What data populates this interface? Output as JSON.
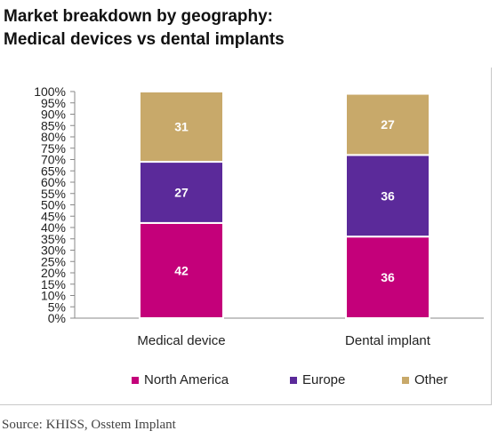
{
  "title_line1": "Market breakdown by geography:",
  "title_line2": "Medical devices vs dental implants",
  "source": "Source: KHISS, Osstem Implant",
  "chart_data": {
    "type": "bar",
    "stacked": true,
    "title": "Market breakdown by geography: Medical devices vs dental implants",
    "categories": [
      "Medical device",
      "Dental implant"
    ],
    "series": [
      {
        "name": "North America",
        "values": [
          42,
          36
        ],
        "color": "#c4007a"
      },
      {
        "name": "Europe",
        "values": [
          27,
          36
        ],
        "color": "#5b2a9a"
      },
      {
        "name": "Other",
        "values": [
          31,
          27
        ],
        "color": "#c8a96a"
      }
    ],
    "y_ticks": [
      "0%",
      "5%",
      "10%",
      "15%",
      "20%",
      "25%",
      "30%",
      "35%",
      "40%",
      "45%",
      "50%",
      "55%",
      "60%",
      "65%",
      "70%",
      "75%",
      "80%",
      "85%",
      "90%",
      "95%",
      "100%"
    ],
    "ylim": [
      0,
      100
    ],
    "legend_position": "bottom",
    "grid": false
  }
}
